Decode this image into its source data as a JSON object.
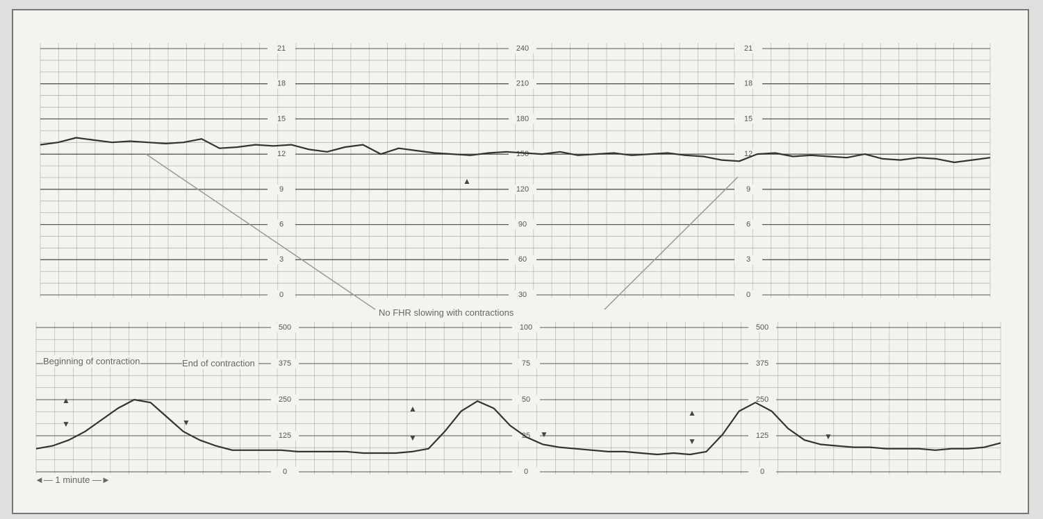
{
  "chart_data": [
    {
      "type": "line",
      "annotations": [
        "No FHR slowing with contractions"
      ],
      "ylim": [
        30,
        240
      ],
      "yticks": [
        30,
        60,
        90,
        120,
        150,
        180,
        210,
        240
      ],
      "y2lim": [
        0,
        21
      ],
      "y2ticks": [
        0,
        3,
        6,
        9,
        12,
        15,
        18,
        21
      ],
      "grid": true,
      "series": [
        {
          "color": "#333333",
          "values": [
            158,
            160,
            164,
            162,
            160,
            161,
            160,
            159,
            160,
            163,
            155,
            156,
            158,
            157,
            158,
            154,
            152,
            156,
            158,
            150,
            155,
            153,
            151,
            150,
            149,
            151,
            152,
            151,
            150,
            152,
            149,
            150,
            151,
            149,
            150,
            151,
            149,
            148,
            145,
            144,
            150,
            151,
            148,
            149,
            148,
            147,
            150,
            146,
            145,
            147,
            146,
            143,
            145,
            147
          ]
        }
      ]
    },
    {
      "type": "line",
      "annotations": [
        "Beginning of contraction",
        "End of contraction",
        "1 minute"
      ],
      "ylim": [
        0,
        100
      ],
      "yticks": [
        0,
        25,
        50,
        75,
        100
      ],
      "y2lim": [
        0,
        500
      ],
      "y2ticks": [
        0,
        125,
        250,
        375,
        500
      ],
      "grid": true,
      "series": [
        {
          "color": "#333333",
          "values": [
            16,
            18,
            22,
            28,
            36,
            44,
            50,
            48,
            38,
            28,
            22,
            18,
            15,
            15,
            15,
            15,
            14,
            14,
            14,
            14,
            13,
            13,
            13,
            14,
            16,
            28,
            42,
            49,
            44,
            32,
            24,
            19,
            17,
            16,
            15,
            14,
            14,
            13,
            12,
            13,
            12,
            14,
            26,
            42,
            48,
            42,
            30,
            22,
            19,
            18,
            17,
            17,
            16,
            16,
            16,
            15,
            16,
            16,
            17,
            20
          ]
        }
      ]
    }
  ]
}
